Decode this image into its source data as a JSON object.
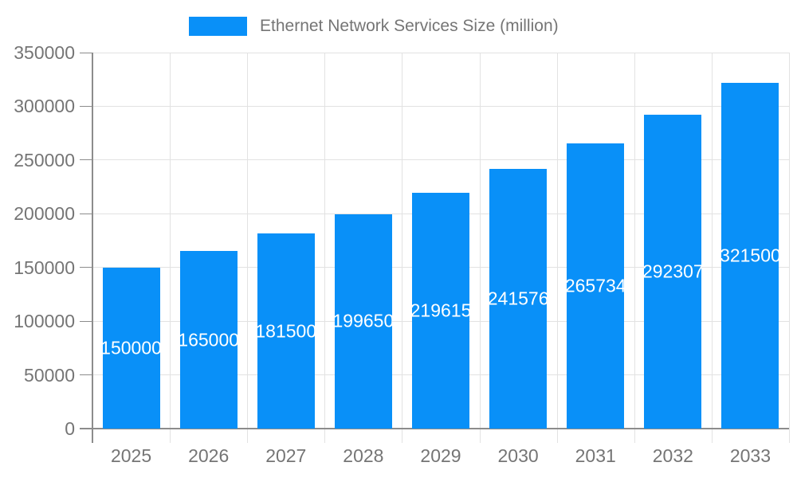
{
  "legend": {
    "label": "Ethernet Network Services Size (million)"
  },
  "chart_data": {
    "type": "bar",
    "title": "",
    "categories": [
      "2025",
      "2026",
      "2027",
      "2028",
      "2029",
      "2030",
      "2031",
      "2032",
      "2033"
    ],
    "series": [
      {
        "name": "Ethernet Network Services Size (million)",
        "values": [
          150000,
          165000,
          181500,
          199650,
          219615,
          241576,
          265734,
          292307,
          321500
        ]
      }
    ],
    "bar_labels": [
      "150000",
      "165000",
      "181500",
      "199650",
      "219615",
      "241576",
      "265734",
      "292307",
      "321500"
    ],
    "xlabel": "",
    "ylabel": "",
    "ylim": [
      0,
      350000
    ],
    "yticks": [
      0,
      50000,
      100000,
      150000,
      200000,
      250000,
      300000,
      350000
    ],
    "ytick_labels": [
      "0",
      "50000",
      "100000",
      "150000",
      "200000",
      "250000",
      "300000",
      "350000"
    ],
    "grid": true,
    "legend_position": "top-center",
    "colors": {
      "bar": "#0990f8",
      "bar_label_text": "#ffffff",
      "axis_text": "#757575",
      "axis_line": "#8c8c8c",
      "gridline": "#e2e2e2",
      "background": "#ffffff"
    }
  }
}
